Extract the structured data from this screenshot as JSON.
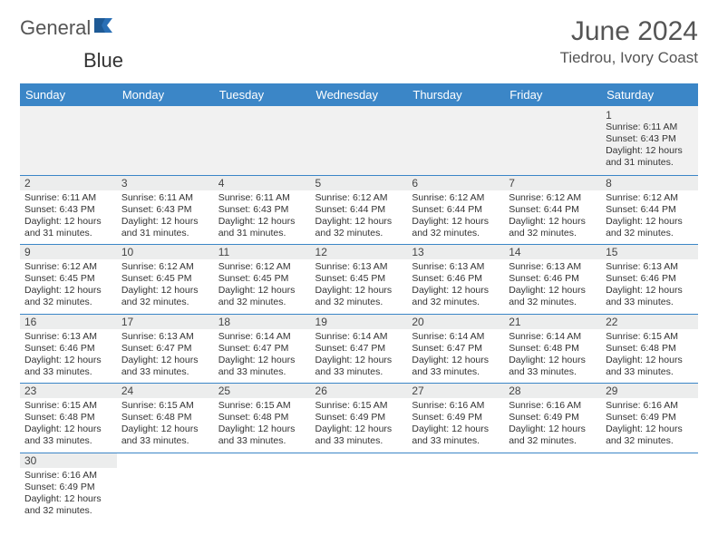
{
  "brand": {
    "part1": "General",
    "part2": "Blue"
  },
  "title": "June 2024",
  "location": "Tiedrou, Ivory Coast",
  "colors": {
    "header_bg": "#3b86c7",
    "header_fg": "#ffffff",
    "row_divider": "#3b86c7",
    "daynum_bg": "#eceded",
    "brand_accent": "#2a6fb5"
  },
  "weekdays": [
    "Sunday",
    "Monday",
    "Tuesday",
    "Wednesday",
    "Thursday",
    "Friday",
    "Saturday"
  ],
  "weeks": [
    [
      null,
      null,
      null,
      null,
      null,
      null,
      {
        "n": "1",
        "sr": "Sunrise: 6:11 AM",
        "ss": "Sunset: 6:43 PM",
        "d1": "Daylight: 12 hours",
        "d2": "and 31 minutes."
      }
    ],
    [
      {
        "n": "2",
        "sr": "Sunrise: 6:11 AM",
        "ss": "Sunset: 6:43 PM",
        "d1": "Daylight: 12 hours",
        "d2": "and 31 minutes."
      },
      {
        "n": "3",
        "sr": "Sunrise: 6:11 AM",
        "ss": "Sunset: 6:43 PM",
        "d1": "Daylight: 12 hours",
        "d2": "and 31 minutes."
      },
      {
        "n": "4",
        "sr": "Sunrise: 6:11 AM",
        "ss": "Sunset: 6:43 PM",
        "d1": "Daylight: 12 hours",
        "d2": "and 31 minutes."
      },
      {
        "n": "5",
        "sr": "Sunrise: 6:12 AM",
        "ss": "Sunset: 6:44 PM",
        "d1": "Daylight: 12 hours",
        "d2": "and 32 minutes."
      },
      {
        "n": "6",
        "sr": "Sunrise: 6:12 AM",
        "ss": "Sunset: 6:44 PM",
        "d1": "Daylight: 12 hours",
        "d2": "and 32 minutes."
      },
      {
        "n": "7",
        "sr": "Sunrise: 6:12 AM",
        "ss": "Sunset: 6:44 PM",
        "d1": "Daylight: 12 hours",
        "d2": "and 32 minutes."
      },
      {
        "n": "8",
        "sr": "Sunrise: 6:12 AM",
        "ss": "Sunset: 6:44 PM",
        "d1": "Daylight: 12 hours",
        "d2": "and 32 minutes."
      }
    ],
    [
      {
        "n": "9",
        "sr": "Sunrise: 6:12 AM",
        "ss": "Sunset: 6:45 PM",
        "d1": "Daylight: 12 hours",
        "d2": "and 32 minutes."
      },
      {
        "n": "10",
        "sr": "Sunrise: 6:12 AM",
        "ss": "Sunset: 6:45 PM",
        "d1": "Daylight: 12 hours",
        "d2": "and 32 minutes."
      },
      {
        "n": "11",
        "sr": "Sunrise: 6:12 AM",
        "ss": "Sunset: 6:45 PM",
        "d1": "Daylight: 12 hours",
        "d2": "and 32 minutes."
      },
      {
        "n": "12",
        "sr": "Sunrise: 6:13 AM",
        "ss": "Sunset: 6:45 PM",
        "d1": "Daylight: 12 hours",
        "d2": "and 32 minutes."
      },
      {
        "n": "13",
        "sr": "Sunrise: 6:13 AM",
        "ss": "Sunset: 6:46 PM",
        "d1": "Daylight: 12 hours",
        "d2": "and 32 minutes."
      },
      {
        "n": "14",
        "sr": "Sunrise: 6:13 AM",
        "ss": "Sunset: 6:46 PM",
        "d1": "Daylight: 12 hours",
        "d2": "and 32 minutes."
      },
      {
        "n": "15",
        "sr": "Sunrise: 6:13 AM",
        "ss": "Sunset: 6:46 PM",
        "d1": "Daylight: 12 hours",
        "d2": "and 33 minutes."
      }
    ],
    [
      {
        "n": "16",
        "sr": "Sunrise: 6:13 AM",
        "ss": "Sunset: 6:46 PM",
        "d1": "Daylight: 12 hours",
        "d2": "and 33 minutes."
      },
      {
        "n": "17",
        "sr": "Sunrise: 6:13 AM",
        "ss": "Sunset: 6:47 PM",
        "d1": "Daylight: 12 hours",
        "d2": "and 33 minutes."
      },
      {
        "n": "18",
        "sr": "Sunrise: 6:14 AM",
        "ss": "Sunset: 6:47 PM",
        "d1": "Daylight: 12 hours",
        "d2": "and 33 minutes."
      },
      {
        "n": "19",
        "sr": "Sunrise: 6:14 AM",
        "ss": "Sunset: 6:47 PM",
        "d1": "Daylight: 12 hours",
        "d2": "and 33 minutes."
      },
      {
        "n": "20",
        "sr": "Sunrise: 6:14 AM",
        "ss": "Sunset: 6:47 PM",
        "d1": "Daylight: 12 hours",
        "d2": "and 33 minutes."
      },
      {
        "n": "21",
        "sr": "Sunrise: 6:14 AM",
        "ss": "Sunset: 6:48 PM",
        "d1": "Daylight: 12 hours",
        "d2": "and 33 minutes."
      },
      {
        "n": "22",
        "sr": "Sunrise: 6:15 AM",
        "ss": "Sunset: 6:48 PM",
        "d1": "Daylight: 12 hours",
        "d2": "and 33 minutes."
      }
    ],
    [
      {
        "n": "23",
        "sr": "Sunrise: 6:15 AM",
        "ss": "Sunset: 6:48 PM",
        "d1": "Daylight: 12 hours",
        "d2": "and 33 minutes."
      },
      {
        "n": "24",
        "sr": "Sunrise: 6:15 AM",
        "ss": "Sunset: 6:48 PM",
        "d1": "Daylight: 12 hours",
        "d2": "and 33 minutes."
      },
      {
        "n": "25",
        "sr": "Sunrise: 6:15 AM",
        "ss": "Sunset: 6:48 PM",
        "d1": "Daylight: 12 hours",
        "d2": "and 33 minutes."
      },
      {
        "n": "26",
        "sr": "Sunrise: 6:15 AM",
        "ss": "Sunset: 6:49 PM",
        "d1": "Daylight: 12 hours",
        "d2": "and 33 minutes."
      },
      {
        "n": "27",
        "sr": "Sunrise: 6:16 AM",
        "ss": "Sunset: 6:49 PM",
        "d1": "Daylight: 12 hours",
        "d2": "and 33 minutes."
      },
      {
        "n": "28",
        "sr": "Sunrise: 6:16 AM",
        "ss": "Sunset: 6:49 PM",
        "d1": "Daylight: 12 hours",
        "d2": "and 32 minutes."
      },
      {
        "n": "29",
        "sr": "Sunrise: 6:16 AM",
        "ss": "Sunset: 6:49 PM",
        "d1": "Daylight: 12 hours",
        "d2": "and 32 minutes."
      }
    ],
    [
      {
        "n": "30",
        "sr": "Sunrise: 6:16 AM",
        "ss": "Sunset: 6:49 PM",
        "d1": "Daylight: 12 hours",
        "d2": "and 32 minutes."
      },
      null,
      null,
      null,
      null,
      null,
      null
    ]
  ]
}
